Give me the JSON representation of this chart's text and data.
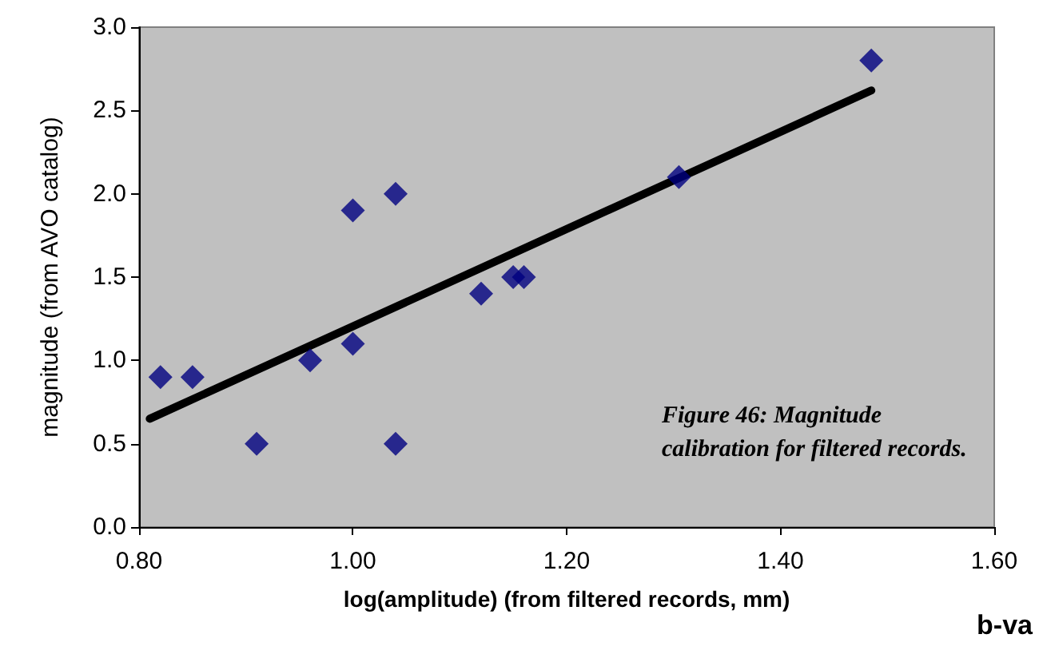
{
  "chart_data": {
    "type": "scatter",
    "xlabel": "log(amplitude) (from filtered records, mm)",
    "ylabel": "magnitude (from AVO catalog)",
    "annotations": [
      "Figure 46: Magnitude calibration for filtered records.",
      "b-va"
    ],
    "series": [
      {
        "color": "#000080",
        "marker": "diamond",
        "x": [
          0.82,
          0.85,
          0.91,
          0.96,
          1.0,
          1.0,
          1.04,
          1.04,
          1.12,
          1.15,
          1.16,
          1.305,
          1.485
        ],
        "values": [
          0.9,
          0.9,
          0.5,
          1.0,
          1.9,
          1.1,
          2.0,
          0.5,
          1.4,
          1.5,
          1.5,
          2.1,
          2.8
        ]
      },
      {
        "type": "line",
        "color": "#000000",
        "marker": "none",
        "x": [
          0.81,
          1.485
        ],
        "values": [
          0.65,
          2.62
        ]
      }
    ],
    "xlim": [
      0.8,
      1.6
    ],
    "xticks": [
      {
        "value": 0.8,
        "label": "0.80"
      },
      {
        "value": 1.0,
        "label": "1.00"
      },
      {
        "value": 1.2,
        "label": "1.20"
      },
      {
        "value": 1.4,
        "label": "1.40"
      },
      {
        "value": 1.6,
        "label": "1.60"
      }
    ],
    "ylim": [
      0,
      3
    ],
    "yticks": [
      {
        "value": 0,
        "label": "0.0"
      },
      {
        "value": 0.5,
        "label": "0.5"
      },
      {
        "value": 1,
        "label": "1.0"
      },
      {
        "value": 1.5,
        "label": "1.5"
      },
      {
        "value": 2,
        "label": "2.0"
      },
      {
        "value": 2.5,
        "label": "2.5"
      },
      {
        "value": 3,
        "label": "3.0"
      }
    ],
    "grid": false
  }
}
